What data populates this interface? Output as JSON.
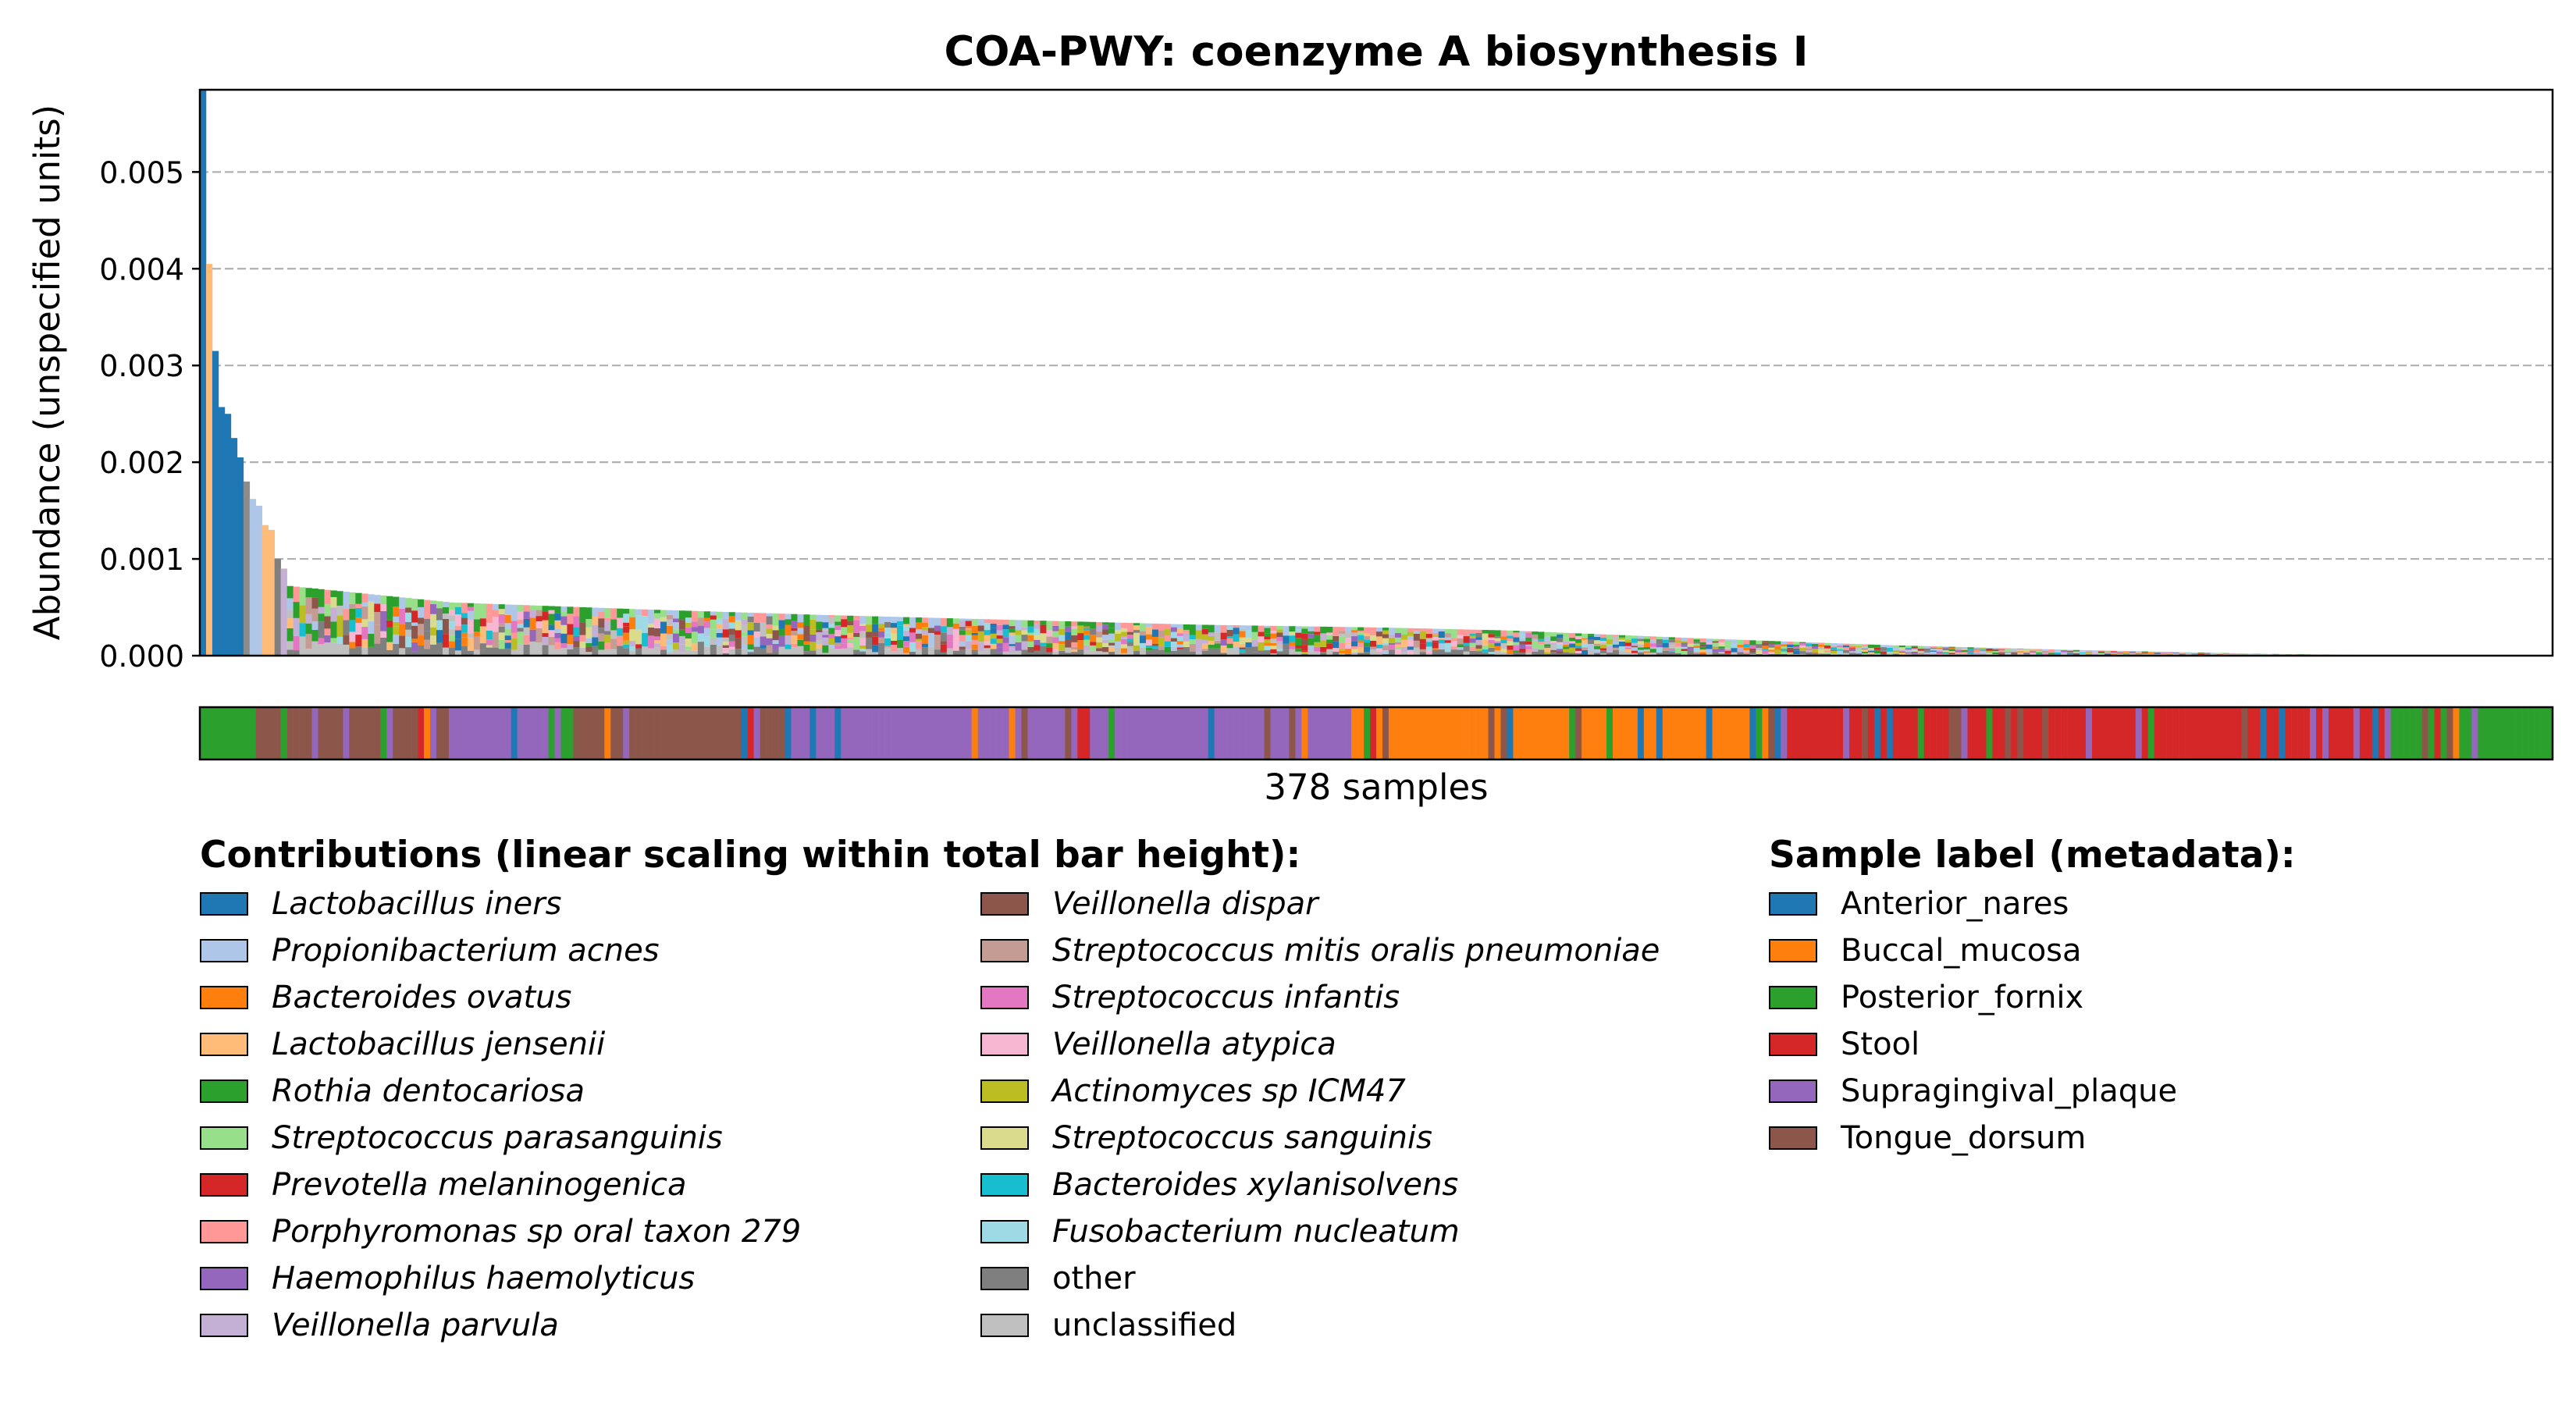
{
  "chart_data": {
    "type": "bar",
    "title": "COA-PWY: coenzyme A biosynthesis I",
    "ylabel": "Abundance (unspecified units)",
    "xlabel": "378 samples",
    "ylim": [
      0,
      0.00585
    ],
    "yticks": [
      "0.000",
      "0.001",
      "0.002",
      "0.003",
      "0.004",
      "0.005"
    ],
    "ytick_values": [
      0,
      0.001,
      0.002,
      0.003,
      0.004,
      0.005
    ],
    "grid": "y-dashed",
    "n_samples": 378,
    "leading_bars": [
      {
        "value": 0.00585,
        "color": "#1f77b4"
      },
      {
        "value": 0.00405,
        "color": "#ffbb78"
      },
      {
        "value": 0.00315,
        "color": "#1f77b4"
      },
      {
        "value": 0.00257,
        "color": "#1f77b4"
      },
      {
        "value": 0.0025,
        "color": "#1f77b4"
      },
      {
        "value": 0.00225,
        "color": "#1f77b4"
      },
      {
        "value": 0.00205,
        "color": "#1f77b4"
      },
      {
        "value": 0.0018,
        "color": "#8c8c8c"
      },
      {
        "value": 0.00162,
        "color": "#aec7e8"
      },
      {
        "value": 0.00155,
        "color": "#aec7e8"
      },
      {
        "value": 0.00135,
        "color": "#ffbb78"
      },
      {
        "value": 0.0013,
        "color": "#ffbb78"
      },
      {
        "value": 0.001,
        "color": "#7f7f7f"
      },
      {
        "value": 0.0009,
        "color": "#c5b0d5"
      }
    ],
    "profile": [
      {
        "rank": 14,
        "value": 0.00072
      },
      {
        "rank": 40,
        "value": 0.00055
      },
      {
        "rank": 70,
        "value": 0.00048
      },
      {
        "rank": 100,
        "value": 0.00042
      },
      {
        "rank": 130,
        "value": 0.00037
      },
      {
        "rank": 160,
        "value": 0.00032
      },
      {
        "rank": 190,
        "value": 0.00029
      },
      {
        "rank": 210,
        "value": 0.00026
      },
      {
        "rank": 240,
        "value": 0.00018
      },
      {
        "rank": 270,
        "value": 0.00011
      },
      {
        "rank": 300,
        "value": 6e-05
      },
      {
        "rank": 330,
        "value": 2e-05
      },
      {
        "rank": 350,
        "value": 5e-06
      },
      {
        "rank": 377,
        "value": 0.0
      }
    ],
    "metadata_strip": [
      {
        "from": 0,
        "to": 9,
        "label": "Posterior_fornix"
      },
      {
        "from": 9,
        "to": 40,
        "label": "Tongue_dorsum"
      },
      {
        "from": 40,
        "to": 60,
        "label": "Supragingival_plaque"
      },
      {
        "from": 60,
        "to": 95,
        "label": "Tongue_dorsum"
      },
      {
        "from": 95,
        "to": 150,
        "label": "Supragingival_plaque"
      },
      {
        "from": 150,
        "to": 185,
        "label": "Supragingival_plaque"
      },
      {
        "from": 185,
        "to": 210,
        "label": "Buccal_mucosa"
      },
      {
        "from": 210,
        "to": 245,
        "label": "Buccal_mucosa"
      },
      {
        "from": 245,
        "to": 252,
        "label": "Buccal_mucosa"
      },
      {
        "from": 252,
        "to": 290,
        "label": "Stool"
      },
      {
        "from": 290,
        "to": 315,
        "label": "Stool"
      },
      {
        "from": 315,
        "to": 350,
        "label": "Stool"
      },
      {
        "from": 350,
        "to": 378,
        "label": "Posterior_fornix"
      }
    ],
    "legend_contributions_title": "Contributions (linear scaling within total bar height):",
    "contributions": [
      {
        "name": "Lactobacillus iners",
        "color": "#1f77b4"
      },
      {
        "name": "Propionibacterium acnes",
        "color": "#aec7e8"
      },
      {
        "name": "Bacteroides ovatus",
        "color": "#ff7f0e"
      },
      {
        "name": "Lactobacillus jensenii",
        "color": "#ffbb78"
      },
      {
        "name": "Rothia dentocariosa",
        "color": "#2ca02c"
      },
      {
        "name": "Streptococcus parasanguinis",
        "color": "#98df8a"
      },
      {
        "name": "Prevotella melaninogenica",
        "color": "#d62728"
      },
      {
        "name": "Porphyromonas sp oral taxon 279",
        "color": "#ff9896"
      },
      {
        "name": "Haemophilus haemolyticus",
        "color": "#9467bd"
      },
      {
        "name": "Veillonella parvula",
        "color": "#c5b0d5"
      },
      {
        "name": "Veillonella dispar",
        "color": "#8c564b"
      },
      {
        "name": "Streptococcus mitis oralis pneumoniae",
        "color": "#c49c94"
      },
      {
        "name": "Streptococcus infantis",
        "color": "#e377c2"
      },
      {
        "name": "Veillonella atypica",
        "color": "#f7b6d2"
      },
      {
        "name": "Actinomyces sp ICM47",
        "color": "#bcbd22"
      },
      {
        "name": "Streptococcus sanguinis",
        "color": "#dbdb8d"
      },
      {
        "name": "Bacteroides xylanisolvens",
        "color": "#17becf"
      },
      {
        "name": "Fusobacterium nucleatum",
        "color": "#9edae5"
      },
      {
        "name": "other",
        "color": "#7f7f7f"
      },
      {
        "name": "unclassified",
        "color": "#c0c0c0"
      }
    ],
    "legend_metadata_title": "Sample label (metadata):",
    "metadata": [
      {
        "name": "Anterior_nares",
        "color": "#1f77b4"
      },
      {
        "name": "Buccal_mucosa",
        "color": "#ff7f0e"
      },
      {
        "name": "Posterior_fornix",
        "color": "#2ca02c"
      },
      {
        "name": "Stool",
        "color": "#d62728"
      },
      {
        "name": "Supragingival_plaque",
        "color": "#9467bd"
      },
      {
        "name": "Tongue_dorsum",
        "color": "#8c564b"
      }
    ]
  }
}
